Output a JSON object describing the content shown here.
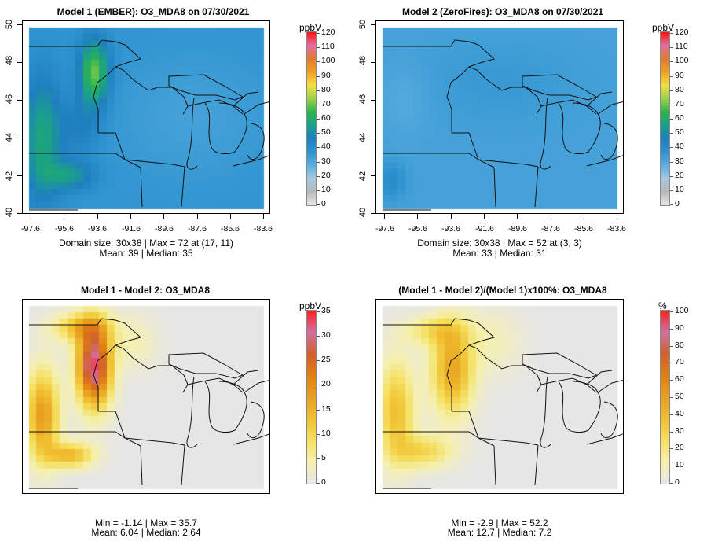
{
  "panels": [
    {
      "id": "p1",
      "title": "Model 1 (EMBER): O3_MDA8 on 07/30/2021",
      "stats_line1": "Domain size: 30x38 | Max = 72 at (17, 11)",
      "stats_line2": "Mean: 39 |  Median: 35",
      "unit": "ppbV",
      "colorbar_ticks": [
        "120",
        "110",
        "100",
        "90",
        "80",
        "70",
        "60",
        "50",
        "40",
        "30",
        "20",
        "10",
        "0"
      ],
      "colorbar_range": [
        0,
        120
      ],
      "colorbar_colors": [
        "#e8e8e8",
        "#b8b8b8",
        "#a8c8e0",
        "#5aaee0",
        "#2e93cf",
        "#1f7fbf",
        "#1aa08a",
        "#2db34a",
        "#9bd24a",
        "#f0e040",
        "#f0a020",
        "#e07a30",
        "#e070a0",
        "#ff1010"
      ],
      "axes": true,
      "y_ticks": [
        "50",
        "48",
        "46",
        "44",
        "42",
        "40"
      ],
      "x_ticks": [
        "-97.6",
        "-95.6",
        "-93.6",
        "-91.6",
        "-89.6",
        "-87.6",
        "-85.6",
        "-83.6"
      ]
    },
    {
      "id": "p2",
      "title": "Model 2 (ZeroFires): O3_MDA8 on 07/30/2021",
      "stats_line1": "Domain size: 30x38 | Max = 52 at (3, 3)",
      "stats_line2": "Mean: 33 |  Median: 31",
      "unit": "ppbV",
      "colorbar_ticks": [
        "120",
        "110",
        "100",
        "90",
        "80",
        "70",
        "60",
        "50",
        "40",
        "30",
        "20",
        "10",
        "0"
      ],
      "colorbar_range": [
        0,
        120
      ],
      "colorbar_colors": [
        "#e8e8e8",
        "#b8b8b8",
        "#a8c8e0",
        "#5aaee0",
        "#2e93cf",
        "#1f7fbf",
        "#1aa08a",
        "#2db34a",
        "#9bd24a",
        "#f0e040",
        "#f0a020",
        "#e07a30",
        "#e070a0",
        "#ff1010"
      ],
      "axes": true,
      "y_ticks": [
        "50",
        "48",
        "46",
        "44",
        "42",
        "40"
      ],
      "x_ticks": [
        "-97.6",
        "-95.6",
        "-93.6",
        "-91.6",
        "-89.6",
        "-87.6",
        "-85.6",
        "-83.6"
      ]
    },
    {
      "id": "p3",
      "title": "Model 1 - Model 2: O3_MDA8",
      "stats_line1": "Min = -1.14 | Max = 35.7",
      "stats_line2": "Mean: 6.04 |  Median: 2.64",
      "unit": "ppbV",
      "colorbar_ticks": [
        "35",
        "30",
        "25",
        "20",
        "15",
        "10",
        "5",
        "0"
      ],
      "colorbar_range": [
        0,
        35
      ],
      "colorbar_colors": [
        "#e6e6e6",
        "#f5f0b0",
        "#f5e060",
        "#f0c030",
        "#e8a020",
        "#e08010",
        "#d06030",
        "#d070a0",
        "#ff2020"
      ],
      "axes": false
    },
    {
      "id": "p4",
      "title": "(Model 1 - Model 2)/(Model 1)x100%: O3_MDA8",
      "stats_line1": "Min = -2.9 | Max = 52.2",
      "stats_line2": "Mean: 12.7 |  Median: 7.2",
      "unit": "%",
      "colorbar_ticks": [
        "100",
        "90",
        "80",
        "70",
        "60",
        "50",
        "40",
        "30",
        "20",
        "10",
        "0"
      ],
      "colorbar_range": [
        0,
        100
      ],
      "colorbar_colors": [
        "#e6e6e6",
        "#f5f0b0",
        "#f5e060",
        "#f0c030",
        "#e8a020",
        "#e08010",
        "#d06030",
        "#d070a0",
        "#ff2020"
      ],
      "axes": false
    }
  ]
}
